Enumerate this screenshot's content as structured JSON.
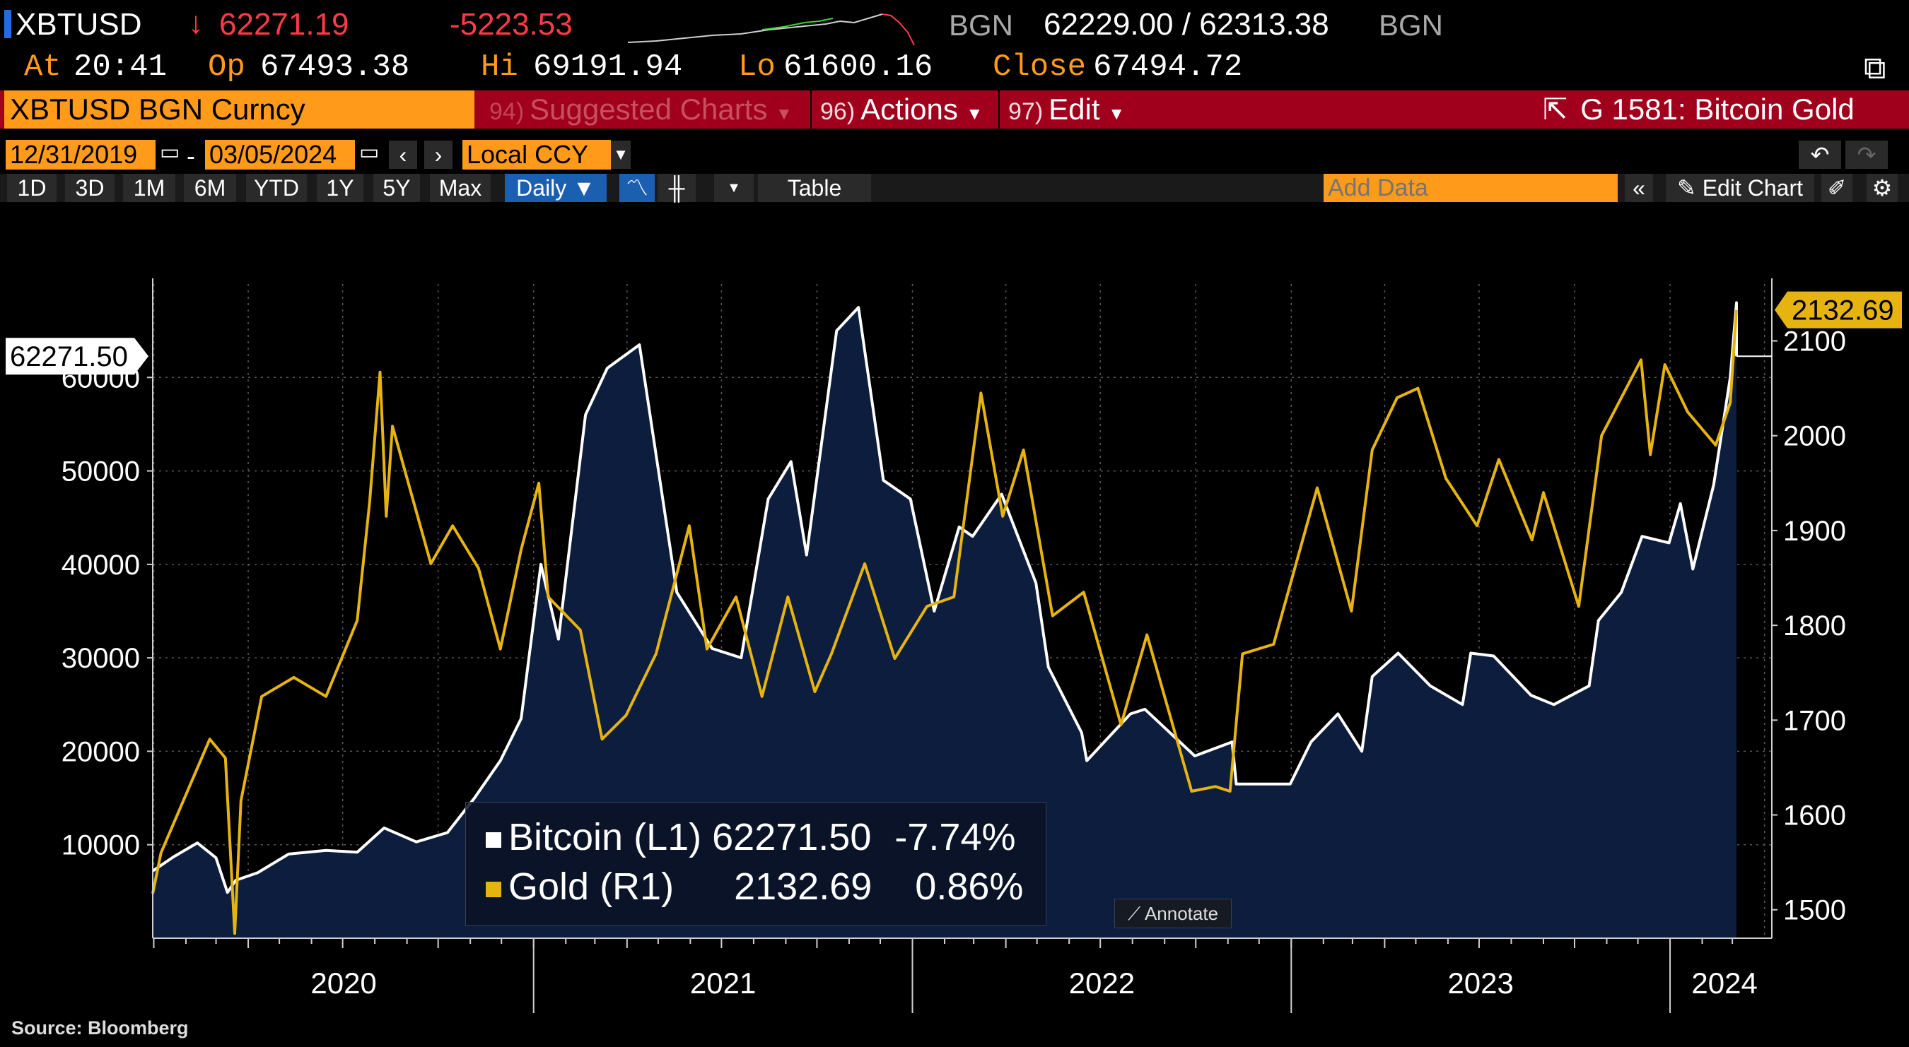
{
  "quote": {
    "ticker": "XBTUSD",
    "arrow": "↓",
    "last": "62271.19",
    "change": "-5223.53",
    "source1": "BGN",
    "bid_ask": "62229.00 / 62313.38",
    "source2": "BGN",
    "at_label": "At",
    "at": "20:41",
    "op_label": "Op",
    "op": "67493.38",
    "hi_label": "Hi",
    "hi": "69191.94",
    "lo_label": "Lo",
    "lo": "61600.16",
    "close_label": "Close",
    "close": "67494.72"
  },
  "toolbar": {
    "security": "XBTUSD BGN Curncy",
    "suggested_num": "94)",
    "suggested": "Suggested Charts",
    "actions_num": "96)",
    "actions": "Actions",
    "edit_num": "97)",
    "edit": "Edit",
    "chart_name": "G 1581: Bitcoin Gold"
  },
  "controls": {
    "start_date": "12/31/2019",
    "dash": "-",
    "end_date": "03/05/2024",
    "currency": "Local CCY",
    "periods": [
      "1D",
      "3D",
      "1M",
      "6M",
      "YTD",
      "1Y",
      "5Y",
      "Max"
    ],
    "frequency": "Daily",
    "table": "Table",
    "add_data_placeholder": "Add Data",
    "edit_chart": "Edit Chart",
    "annotate": "Annotate"
  },
  "chart_data": {
    "type": "area",
    "series": [
      {
        "name": "Bitcoin (L1)",
        "axis": "left",
        "color": "#ffffff",
        "fill": "#0c1d3d",
        "last": "62271.50",
        "pct": "-7.74%",
        "points": [
          [
            "2019-12-31",
            7200
          ],
          [
            "2020-01-20",
            8700
          ],
          [
            "2020-02-12",
            10200
          ],
          [
            "2020-03-01",
            8600
          ],
          [
            "2020-03-12",
            4900
          ],
          [
            "2020-03-20",
            6200
          ],
          [
            "2020-04-10",
            7000
          ],
          [
            "2020-05-10",
            9000
          ],
          [
            "2020-06-15",
            9400
          ],
          [
            "2020-07-15",
            9200
          ],
          [
            "2020-08-10",
            11800
          ],
          [
            "2020-09-10",
            10300
          ],
          [
            "2020-10-10",
            11300
          ],
          [
            "2020-11-05",
            15000
          ],
          [
            "2020-11-30",
            19000
          ],
          [
            "2020-12-20",
            23500
          ],
          [
            "2021-01-08",
            40000
          ],
          [
            "2021-01-25",
            32000
          ],
          [
            "2021-02-20",
            56000
          ],
          [
            "2021-03-13",
            61000
          ],
          [
            "2021-04-13",
            63500
          ],
          [
            "2021-05-19",
            37000
          ],
          [
            "2021-06-22",
            31000
          ],
          [
            "2021-07-20",
            30000
          ],
          [
            "2021-08-15",
            47000
          ],
          [
            "2021-09-06",
            51000
          ],
          [
            "2021-09-21",
            41000
          ],
          [
            "2021-10-20",
            65000
          ],
          [
            "2021-11-10",
            67500
          ],
          [
            "2021-12-04",
            49000
          ],
          [
            "2021-12-30",
            47000
          ],
          [
            "2022-01-22",
            35000
          ],
          [
            "2022-02-15",
            44000
          ],
          [
            "2022-02-28",
            43000
          ],
          [
            "2022-03-28",
            47500
          ],
          [
            "2022-04-30",
            38000
          ],
          [
            "2022-05-12",
            29000
          ],
          [
            "2022-06-13",
            22000
          ],
          [
            "2022-06-18",
            19000
          ],
          [
            "2022-07-30",
            24000
          ],
          [
            "2022-08-13",
            24500
          ],
          [
            "2022-09-30",
            19500
          ],
          [
            "2022-11-05",
            21000
          ],
          [
            "2022-11-09",
            16500
          ],
          [
            "2022-12-31",
            16500
          ],
          [
            "2023-01-20",
            21000
          ],
          [
            "2023-02-15",
            24000
          ],
          [
            "2023-03-10",
            20000
          ],
          [
            "2023-03-20",
            28000
          ],
          [
            "2023-04-14",
            30500
          ],
          [
            "2023-05-15",
            27000
          ],
          [
            "2023-06-15",
            25000
          ],
          [
            "2023-06-23",
            30500
          ],
          [
            "2023-07-15",
            30200
          ],
          [
            "2023-08-20",
            26000
          ],
          [
            "2023-09-11",
            25000
          ],
          [
            "2023-10-15",
            27000
          ],
          [
            "2023-10-24",
            34000
          ],
          [
            "2023-11-15",
            37000
          ],
          [
            "2023-12-05",
            43000
          ],
          [
            "2023-12-31",
            42300
          ],
          [
            "2024-01-11",
            46500
          ],
          [
            "2024-01-23",
            39500
          ],
          [
            "2024-02-12",
            48500
          ],
          [
            "2024-02-28",
            60000
          ],
          [
            "2024-03-05",
            68000
          ],
          [
            "2024-03-05",
            62271.5
          ]
        ]
      },
      {
        "name": "Gold (R1)",
        "axis": "right",
        "color": "#e6b410",
        "last": "2132.69",
        "pct": "0.86%",
        "points": [
          [
            "2019-12-31",
            1517
          ],
          [
            "2020-01-08",
            1560
          ],
          [
            "2020-02-24",
            1680
          ],
          [
            "2020-03-10",
            1660
          ],
          [
            "2020-03-19",
            1475
          ],
          [
            "2020-03-25",
            1615
          ],
          [
            "2020-04-14",
            1725
          ],
          [
            "2020-05-15",
            1745
          ],
          [
            "2020-06-15",
            1725
          ],
          [
            "2020-07-15",
            1805
          ],
          [
            "2020-07-27",
            1930
          ],
          [
            "2020-08-06",
            2067
          ],
          [
            "2020-08-12",
            1915
          ],
          [
            "2020-08-18",
            2010
          ],
          [
            "2020-09-24",
            1865
          ],
          [
            "2020-10-15",
            1905
          ],
          [
            "2020-11-09",
            1860
          ],
          [
            "2020-11-30",
            1775
          ],
          [
            "2020-12-20",
            1880
          ],
          [
            "2021-01-06",
            1950
          ],
          [
            "2021-01-15",
            1830
          ],
          [
            "2021-02-15",
            1795
          ],
          [
            "2021-03-08",
            1680
          ],
          [
            "2021-03-31",
            1705
          ],
          [
            "2021-04-29",
            1770
          ],
          [
            "2021-05-31",
            1905
          ],
          [
            "2021-06-17",
            1775
          ],
          [
            "2021-07-15",
            1830
          ],
          [
            "2021-08-09",
            1725
          ],
          [
            "2021-09-03",
            1830
          ],
          [
            "2021-09-29",
            1730
          ],
          [
            "2021-10-15",
            1770
          ],
          [
            "2021-11-16",
            1865
          ],
          [
            "2021-12-15",
            1765
          ],
          [
            "2022-01-15",
            1820
          ],
          [
            "2022-02-10",
            1830
          ],
          [
            "2022-03-08",
            2045
          ],
          [
            "2022-03-29",
            1915
          ],
          [
            "2022-04-18",
            1985
          ],
          [
            "2022-05-16",
            1810
          ],
          [
            "2022-06-15",
            1835
          ],
          [
            "2022-07-21",
            1695
          ],
          [
            "2022-08-15",
            1790
          ],
          [
            "2022-09-27",
            1625
          ],
          [
            "2022-10-20",
            1630
          ],
          [
            "2022-11-03",
            1625
          ],
          [
            "2022-11-15",
            1770
          ],
          [
            "2022-12-15",
            1780
          ],
          [
            "2023-01-26",
            1945
          ],
          [
            "2023-02-28",
            1815
          ],
          [
            "2023-03-20",
            1985
          ],
          [
            "2023-04-13",
            2040
          ],
          [
            "2023-05-03",
            2050
          ],
          [
            "2023-05-30",
            1955
          ],
          [
            "2023-06-29",
            1905
          ],
          [
            "2023-07-20",
            1975
          ],
          [
            "2023-08-21",
            1890
          ],
          [
            "2023-09-01",
            1940
          ],
          [
            "2023-10-05",
            1820
          ],
          [
            "2023-10-27",
            2000
          ],
          [
            "2023-12-04",
            2080
          ],
          [
            "2023-12-13",
            1980
          ],
          [
            "2023-12-27",
            2075
          ],
          [
            "2024-01-18",
            2025
          ],
          [
            "2024-02-14",
            1990
          ],
          [
            "2024-02-28",
            2035
          ],
          [
            "2024-03-05",
            2132.69
          ]
        ]
      }
    ],
    "left_axis": {
      "min": 0,
      "max": 70000,
      "ticks": [
        10000,
        20000,
        30000,
        40000,
        50000,
        60000
      ]
    },
    "right_axis": {
      "min": 1470,
      "max": 2160,
      "ticks": [
        1500,
        1600,
        1700,
        1800,
        1900,
        2000,
        2100
      ]
    },
    "x_axis": {
      "start": "2019-12-31",
      "end": "2024-03-05",
      "years": [
        "2020",
        "2021",
        "2022",
        "2023",
        "2024"
      ]
    },
    "grid": true,
    "legend_position": "bottom-center"
  },
  "source_note": "Source: Bloomberg"
}
